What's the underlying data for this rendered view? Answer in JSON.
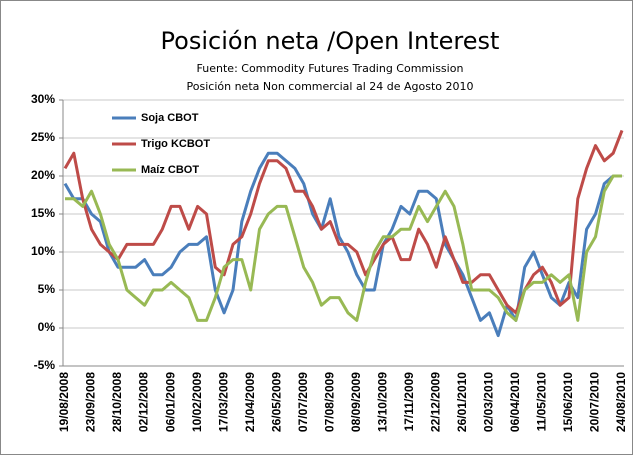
{
  "chart_data": {
    "type": "line",
    "title": "Posición neta /Open Interest",
    "subtitle": [
      "Fuente: Commodity  Futures Trading Commission",
      "Posición neta Non commercial al 24 de Agosto 2010"
    ],
    "categories": [
      "19/08/2008",
      null,
      null,
      "23/09/2008",
      null,
      null,
      "28/10/2008",
      null,
      null,
      "02/12/2008",
      null,
      null,
      "06/01/2009",
      null,
      null,
      "10/02/2009",
      null,
      null,
      "17/03/2009",
      null,
      null,
      "21/04/2009",
      null,
      null,
      "26/05/2009",
      null,
      null,
      "07/07/2009",
      null,
      null,
      "07/08/2009",
      null,
      null,
      "08/09/2009",
      null,
      null,
      "13/10/2009",
      null,
      null,
      "17/11/2009",
      null,
      null,
      "22/12/2009",
      null,
      null,
      "26/01/2010",
      null,
      null,
      "02/03/2010",
      null,
      null,
      "06/04/2010",
      null,
      null,
      "11/05/2010",
      null,
      null,
      "15/06/2010",
      null,
      null,
      "20/07/2010",
      null,
      null,
      "24/08/2010"
    ],
    "series": [
      {
        "name": "Soja CBOT",
        "color": "#4a7ebb",
        "values": [
          19,
          17,
          17,
          15,
          14,
          10,
          8,
          8,
          8,
          9,
          7,
          7,
          8,
          10,
          11,
          11,
          12,
          5,
          2,
          5,
          14,
          18,
          21,
          23,
          23,
          22,
          21,
          19,
          15,
          13,
          17,
          12,
          10,
          7,
          5,
          5,
          11,
          13,
          16,
          15,
          18,
          18,
          17,
          11,
          9,
          7,
          4,
          1,
          2,
          -1,
          3,
          1,
          8,
          10,
          7,
          4,
          3,
          6,
          4,
          13,
          15,
          19,
          20,
          20
        ]
      },
      {
        "name": "Trigo KCBOT",
        "color": "#be4b48",
        "values": [
          21,
          23,
          17,
          13,
          11,
          10,
          9,
          11,
          11,
          11,
          11,
          13,
          16,
          16,
          13,
          16,
          15,
          8,
          7,
          11,
          12,
          15,
          19,
          22,
          22,
          21,
          18,
          18,
          16,
          13,
          14,
          11,
          11,
          10,
          7,
          9,
          11,
          12,
          9,
          9,
          13,
          11,
          8,
          12,
          9,
          6,
          6,
          7,
          7,
          5,
          3,
          2,
          5,
          7,
          8,
          6,
          3,
          4,
          17,
          21,
          24,
          22,
          23,
          26
        ]
      },
      {
        "name": "Maíz CBOT",
        "color": "#98b954",
        "values": [
          17,
          17,
          16,
          18,
          15,
          11,
          9,
          5,
          4,
          3,
          5,
          5,
          6,
          5,
          4,
          1,
          1,
          4,
          8,
          9,
          9,
          5,
          13,
          15,
          16,
          16,
          12,
          8,
          6,
          3,
          4,
          4,
          2,
          1,
          6,
          10,
          12,
          12,
          13,
          13,
          16,
          14,
          16,
          18,
          16,
          11,
          5,
          5,
          5,
          4,
          2,
          1,
          5,
          6,
          6,
          7,
          6,
          7,
          1,
          10,
          12,
          18,
          20,
          20
        ]
      }
    ],
    "ylim": [
      -5,
      30
    ],
    "yticks": [
      {
        "value": -5,
        "label": "-5%"
      },
      {
        "value": 0,
        "label": "0%"
      },
      {
        "value": 5,
        "label": "5%"
      },
      {
        "value": 10,
        "label": "10%"
      },
      {
        "value": 15,
        "label": "15%"
      },
      {
        "value": 20,
        "label": "20%"
      },
      {
        "value": 25,
        "label": "25%"
      },
      {
        "value": 30,
        "label": "30%"
      }
    ],
    "grid": true
  }
}
